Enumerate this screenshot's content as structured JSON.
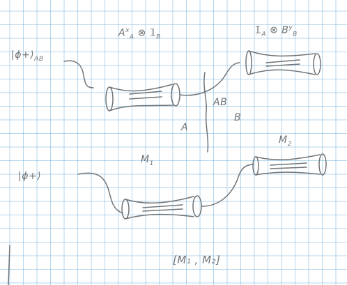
{
  "labels": {
    "ket_top": "|ϕ+⟩",
    "ket_top_sub": "AB",
    "op_left_main": "A",
    "op_left_sup": "x",
    "op_left_sub": "A",
    "op_left_rest": "⊗ 𝟙",
    "op_left_rest_sub": "B",
    "op_right_main": "𝟙",
    "op_right_sub": "A",
    "op_right_mid": "⊗ B",
    "op_right_sup": "y",
    "op_right_sub2": "B",
    "cut_a": "A",
    "cut_ab": "AB",
    "cut_b": "B",
    "ket_bottom": "|ϕ+⟩",
    "m1": "M",
    "m1_sub": "1",
    "m2": "M",
    "m2_sub": "2",
    "commutator": "[M₁ , M₂]"
  },
  "colors": {
    "ink": "#6f7478",
    "grid": "#78b4dc"
  }
}
